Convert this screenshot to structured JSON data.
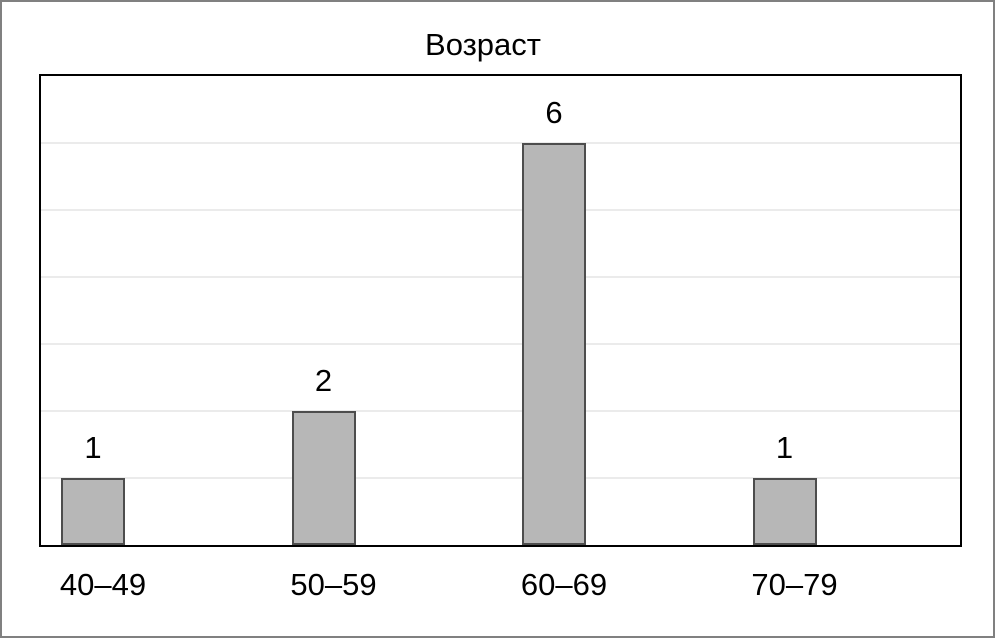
{
  "chart_data": {
    "type": "bar",
    "title": "Возраст",
    "categories": [
      "40–49",
      "50–59",
      "60–69",
      "70–79"
    ],
    "values": [
      1,
      2,
      6,
      1
    ],
    "value_labels": [
      "1",
      "2",
      "6",
      "1"
    ],
    "xlabel": "",
    "ylabel": "",
    "ylim": [
      0,
      7
    ],
    "gridline_levels": [
      1,
      2,
      3,
      4,
      5,
      6
    ],
    "grid": "horizontal",
    "legend_position": "none",
    "y_axis_tick_labels_shown": false,
    "colors": {
      "bar_fill": "#b7b7b7",
      "bar_border": "#4d4d4d",
      "gridline": "#ebebeb",
      "plot_border": "#000000",
      "outer_border": "#808080",
      "background": "#ffffff",
      "text": "#000000"
    }
  }
}
